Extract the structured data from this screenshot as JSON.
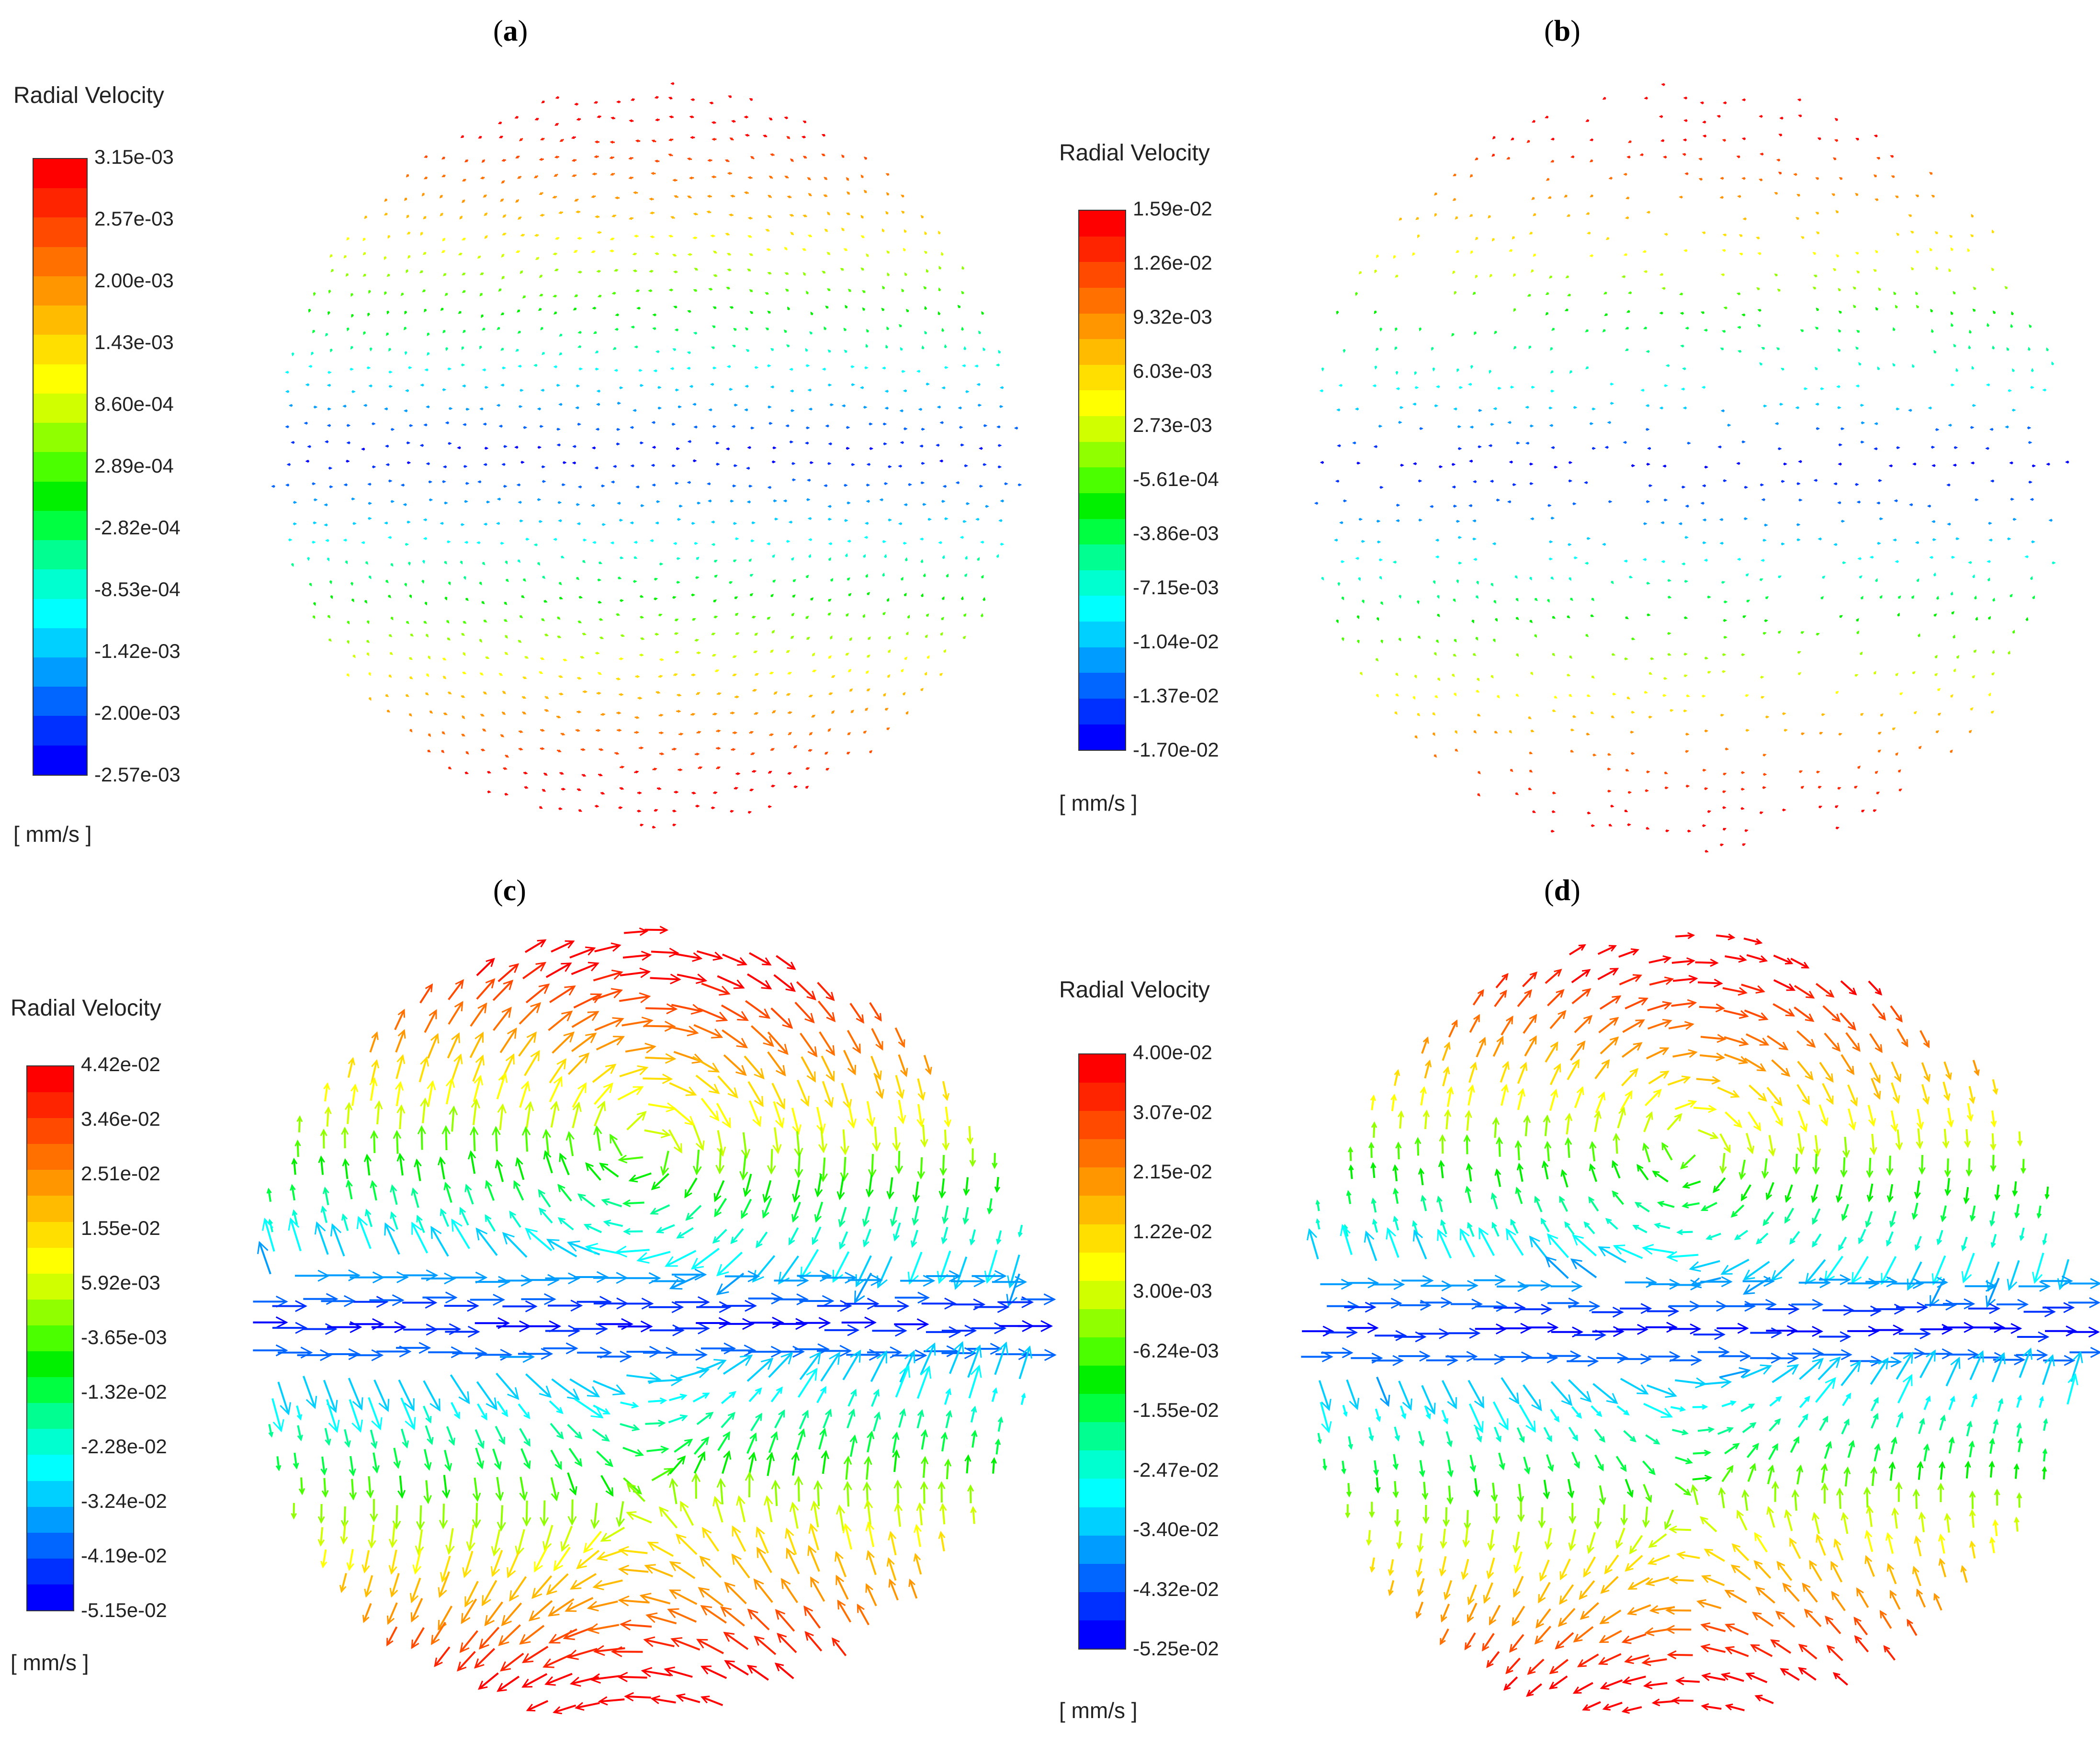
{
  "colormap": [
    "#ff0000",
    "#ff2400",
    "#ff4a00",
    "#ff7000",
    "#ff9600",
    "#ffbb00",
    "#ffdf00",
    "#ffff00",
    "#d0ff00",
    "#90ff00",
    "#4cff00",
    "#00f000",
    "#00ff40",
    "#00ff90",
    "#00ffd0",
    "#00ffff",
    "#00d0ff",
    "#009cff",
    "#0066ff",
    "#0030ff",
    "#0000ff"
  ],
  "chart_data": [
    {
      "panel": "a",
      "type": "vector-field",
      "label_letter": "a",
      "legend_title": "Radial Velocity",
      "units": "[ mm/s ]",
      "ticks": [
        "3.15e-03",
        "2.57e-03",
        "2.00e-03",
        "1.43e-03",
        "8.60e-04",
        "2.89e-04",
        "-2.82e-04",
        "-8.53e-04",
        "-1.42e-03",
        "-2.00e-03",
        "-2.57e-03"
      ],
      "range": [
        -0.00257,
        0.00315
      ],
      "pattern": "short-vectors",
      "arrow_magnitude": 0.35
    },
    {
      "panel": "b",
      "type": "vector-field",
      "label_letter": "b",
      "legend_title": "Radial Velocity",
      "units": "[ mm/s ]",
      "ticks": [
        "1.59e-02",
        "1.26e-02",
        "9.32e-03",
        "6.03e-03",
        "2.73e-03",
        "-5.61e-04",
        "-3.86e-03",
        "-7.15e-03",
        "-1.04e-02",
        "-1.37e-02",
        "-1.70e-02"
      ],
      "range": [
        -0.017,
        0.0159
      ],
      "pattern": "sparse-short-vectors",
      "arrow_magnitude": 0.2
    },
    {
      "panel": "c",
      "type": "vector-field",
      "label_letter": "c",
      "legend_title": "Radial Velocity",
      "units": "[ mm/s ]",
      "ticks": [
        "4.42e-02",
        "3.46e-02",
        "2.51e-02",
        "1.55e-02",
        "5.92e-03",
        "-3.65e-03",
        "-1.32e-02",
        "-2.28e-02",
        "-3.24e-02",
        "-4.19e-02",
        "-5.15e-02"
      ],
      "range": [
        -0.0515,
        0.0442
      ],
      "pattern": "swirl",
      "arrow_magnitude": 1.0
    },
    {
      "panel": "d",
      "type": "vector-field",
      "label_letter": "d",
      "legend_title": "Radial Velocity",
      "units": "[ mm/s ]",
      "ticks": [
        "4.00e-02",
        "3.07e-02",
        "2.15e-02",
        "1.22e-02",
        "3.00e-03",
        "-6.24e-03",
        "-1.55e-02",
        "-2.47e-02",
        "-3.40e-02",
        "-4.32e-02",
        "-5.25e-02"
      ],
      "range": [
        -0.0525,
        0.04
      ],
      "pattern": "swirl",
      "arrow_magnitude": 0.8
    }
  ]
}
